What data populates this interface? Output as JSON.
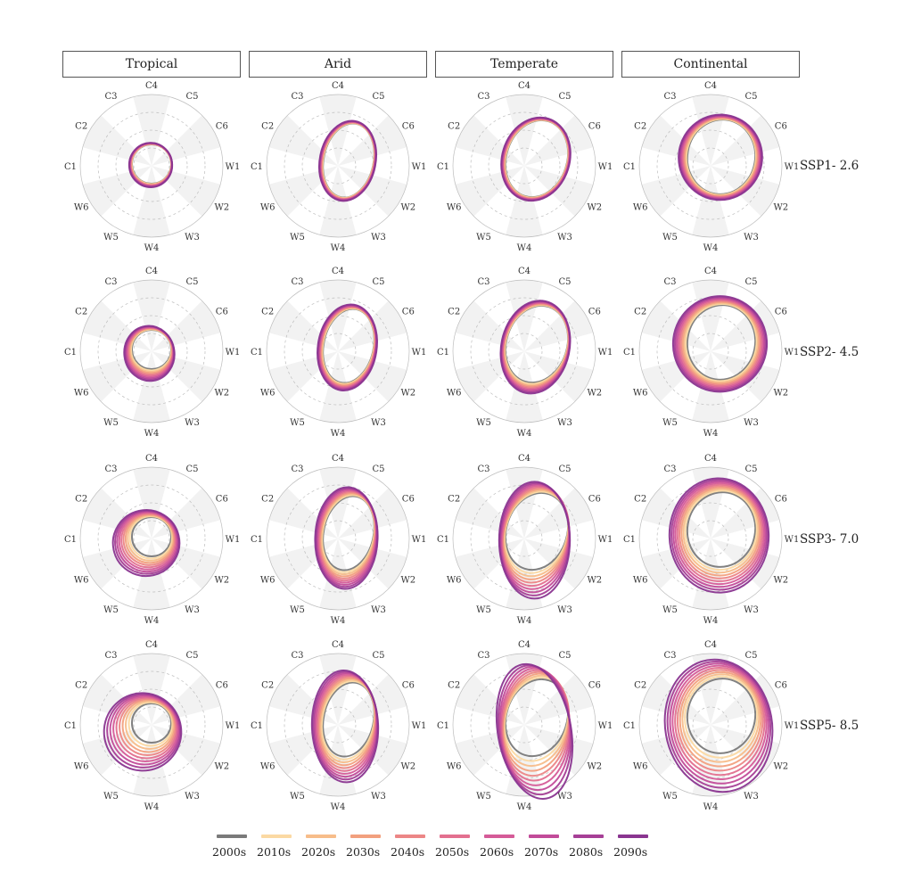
{
  "columns": [
    "Tropical",
    "Arid",
    "Temperate",
    "Continental"
  ],
  "rows": [
    "SSP1- 2.6",
    "SSP2- 4.5",
    "SSP3- 7.0",
    "SSP5- 8.5"
  ],
  "sector_labels": [
    "W1",
    "W2",
    "W3",
    "W4",
    "W5",
    "W6",
    "C1",
    "C2",
    "C3",
    "C4",
    "C5",
    "C6"
  ],
  "legend": [
    "2000s",
    "2010s",
    "2020s",
    "2030s",
    "2040s",
    "2050s",
    "2060s",
    "2070s",
    "2080s",
    "2090s"
  ],
  "colors": {
    "decades": [
      "#7a7a7a",
      "#fbd9a3",
      "#f7bd8a",
      "#f2a07e",
      "#ec8686",
      "#e3708f",
      "#d55b98",
      "#c24b99",
      "#a63f96",
      "#8a3590"
    ],
    "shaded_sector": "#f2f2f2",
    "grid": "#bdbdbd"
  },
  "chart_data": {
    "type": "polar-line",
    "description_axes": "12 angular sectors (W1–W6 warm, C1–C6 cold); shaded alternating sectors; concentric dashed grid rings",
    "series_names": [
      "2000s",
      "2010s",
      "2020s",
      "2030s",
      "2040s",
      "2050s",
      "2060s",
      "2070s",
      "2080s",
      "2090s"
    ],
    "panels": [
      {
        "column": "Tropical",
        "row": "SSP1- 2.6",
        "spread": [
          0.02,
          0.02,
          0.05,
          0.02
        ]
      },
      {
        "column": "Arid",
        "row": "SSP1- 2.6",
        "spread": [
          0.03,
          0.02,
          0.02,
          0.02
        ]
      },
      {
        "column": "Temperate",
        "row": "SSP1- 2.6",
        "spread": [
          0.03,
          0.02,
          0.02,
          0.02
        ]
      },
      {
        "column": "Continental",
        "row": "SSP1- 2.6",
        "spread": [
          0.06,
          0.05,
          0.02,
          0.02
        ]
      },
      {
        "column": "Tropical",
        "row": "SSP2- 4.5",
        "spread": [
          0.02,
          0.12,
          0.2,
          0.05
        ]
      },
      {
        "column": "Arid",
        "row": "SSP2- 4.5",
        "spread": [
          0.04,
          0.04,
          0.08,
          0.03
        ]
      },
      {
        "column": "Temperate",
        "row": "SSP2- 4.5",
        "spread": [
          0.03,
          0.03,
          0.15,
          0.03
        ]
      },
      {
        "column": "Continental",
        "row": "SSP2- 4.5",
        "spread": [
          0.1,
          0.08,
          0.08,
          0.03
        ]
      },
      {
        "column": "Tropical",
        "row": "SSP3- 7.0",
        "spread": [
          0.05,
          0.3,
          0.32,
          0.12
        ]
      },
      {
        "column": "Arid",
        "row": "SSP3- 7.0",
        "spread": [
          0.06,
          0.05,
          0.25,
          0.05
        ]
      },
      {
        "column": "Temperate",
        "row": "SSP3- 7.0",
        "spread": [
          0.04,
          0.04,
          0.45,
          0.05
        ]
      },
      {
        "column": "Continental",
        "row": "SSP3- 7.0",
        "spread": [
          0.12,
          0.1,
          0.3,
          0.05
        ]
      },
      {
        "column": "Tropical",
        "row": "SSP5- 8.5",
        "spread": [
          0.08,
          0.4,
          0.45,
          0.2
        ]
      },
      {
        "column": "Arid",
        "row": "SSP5- 8.5",
        "spread": [
          0.08,
          0.06,
          0.35,
          0.08
        ]
      },
      {
        "column": "Temperate",
        "row": "SSP5- 8.5",
        "spread": [
          0.05,
          0.05,
          0.7,
          0.05
        ]
      },
      {
        "column": "Continental",
        "row": "SSP5- 8.5",
        "spread": [
          0.15,
          0.12,
          0.5,
          0.06
        ]
      }
    ]
  }
}
